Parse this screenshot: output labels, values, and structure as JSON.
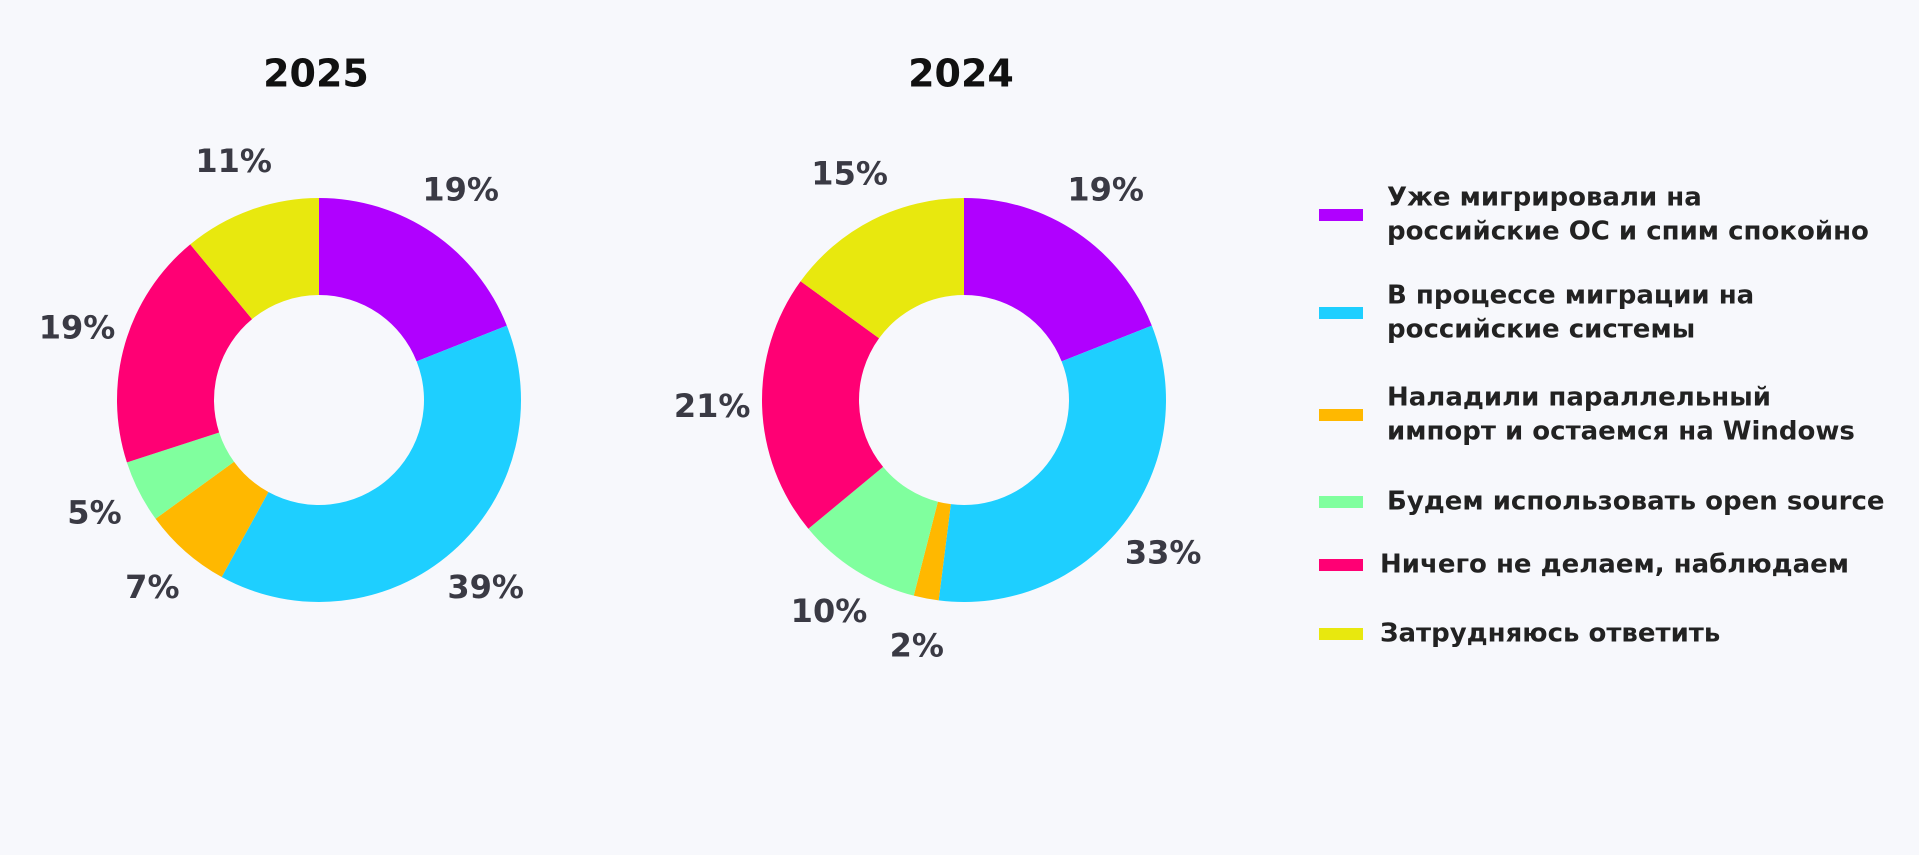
{
  "chart_data": [
    {
      "type": "pie",
      "title": "2025",
      "values": [
        19,
        39,
        7,
        5,
        19,
        11
      ],
      "value_labels": [
        "19%",
        "39%",
        "7%",
        "5%",
        "19%",
        "11%"
      ]
    },
    {
      "type": "pie",
      "title": "2024",
      "values": [
        19,
        33,
        2,
        10,
        21,
        15
      ],
      "value_labels": [
        "19%",
        "33%",
        "2%",
        "10%",
        "21%",
        "15%"
      ]
    }
  ],
  "legend": {
    "items": [
      {
        "label": [
          "Уже мигрировали на",
          "российские ОС и спим спокойно"
        ],
        "color": "#b000ff"
      },
      {
        "label": [
          "В процессе миграции на",
          "российские системы"
        ],
        "color": "#1ecfff"
      },
      {
        "label": [
          "Наладили параллельный",
          "импорт и остаемся на Windows"
        ],
        "color": "#ffb800"
      },
      {
        "label": [
          "Будем использовать open source"
        ],
        "color": "#80ff9e"
      },
      {
        "label": [
          "Ничего не делаем, наблюдаем"
        ],
        "color": "#ff0074"
      },
      {
        "label": [
          "Затрудняюсь ответить"
        ],
        "color": "#e8e80e"
      }
    ]
  }
}
